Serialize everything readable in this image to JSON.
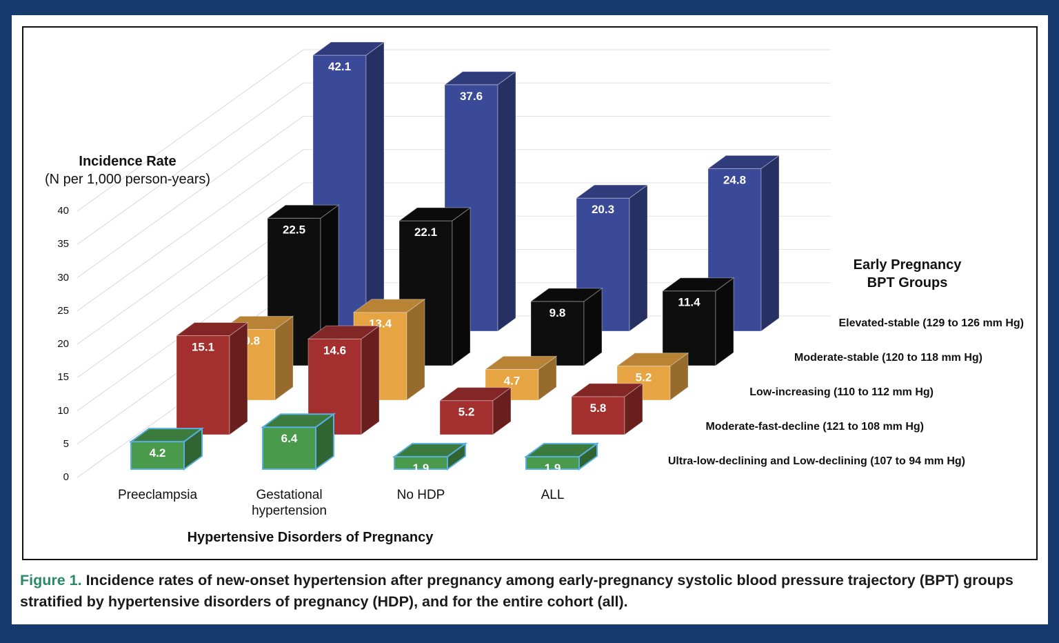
{
  "chart_data": {
    "type": "bar",
    "style": "3d-grouped",
    "ylabel_line1": "Incidence Rate",
    "ylabel_line2": "(N per 1,000 person-years)",
    "xlabel": "Hypertensive Disorders of Pregnancy",
    "legend_title_line1": "Early Pregnancy",
    "legend_title_line2": "BPT Groups",
    "legend_position": "right",
    "ylim": [
      0,
      40
    ],
    "yticks": [
      "0",
      "5",
      "10",
      "15",
      "20",
      "25",
      "30",
      "35",
      "40"
    ],
    "grid": true,
    "categories": [
      "Preeclampsia",
      "Gestational hypertension",
      "No HDP",
      "ALL"
    ],
    "series": [
      {
        "name": "Ultra-low-declining and Low-declining (107 to 94 mm Hg)",
        "color": "#4a9a4c",
        "values": [
          4.2,
          6.4,
          1.9,
          1.9
        ]
      },
      {
        "name": "Moderate-fast-decline (121 to 108 mm Hg)",
        "color": "#a32f2f",
        "values": [
          15.1,
          14.6,
          5.2,
          5.8
        ]
      },
      {
        "name": "Low-increasing (110 to 112 mm Hg)",
        "color": "#e6a442",
        "values": [
          10.8,
          13.4,
          4.7,
          5.2
        ]
      },
      {
        "name": "Moderate-stable (120 to 118 mm Hg)",
        "color": "#0e0e0e",
        "values": [
          22.5,
          22.1,
          9.8,
          11.4
        ]
      },
      {
        "name": "Elevated-stable (129 to 126 mm Hg)",
        "color": "#3b4a98",
        "values": [
          42.1,
          37.6,
          20.3,
          24.8
        ]
      }
    ]
  },
  "caption": {
    "figure_label": "Figure 1.",
    "text": " Incidence rates of new-onset hypertension after pregnancy among early-pregnancy systolic blood pressure trajectory (BPT) groups stratified by hypertensive disorders of pregnancy (HDP), and for the entire cohort (all)."
  }
}
